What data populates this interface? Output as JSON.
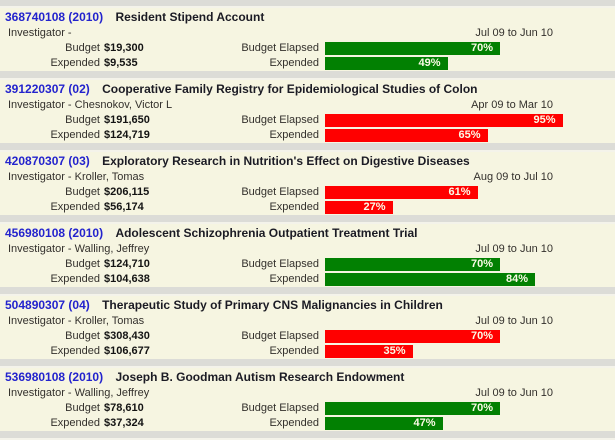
{
  "page": {
    "background_color": "#dcdcd7",
    "card_color": "#f6f5e1",
    "link_color": "#2323cd",
    "bar_green": "#028002",
    "bar_red": "#ff0000",
    "bar_text_color": "#fbfae6"
  },
  "labels": {
    "investigator_prefix": "Investigator -",
    "budget": "Budget",
    "budget_elapsed": "Budget Elapsed",
    "expended": "Expended"
  },
  "grants": [
    {
      "number": "368740108 (2010)",
      "title": "Resident Stipend Account",
      "investigator": "",
      "period": "Jul 09 to Jun 10",
      "budget": "$19,300",
      "expended": "$9,535",
      "budget_elapsed": {
        "pct": 70,
        "label": "70%",
        "color": "#028002"
      },
      "expended_bar": {
        "pct": 49,
        "label": "49%",
        "color": "#028002"
      }
    },
    {
      "number": "391220307 (02)",
      "title": "Cooperative Family Registry for Epidemiological Studies of Colon",
      "investigator": "Chesnokov, Victor L",
      "period": "Apr 09 to Mar 10",
      "budget": "$191,650",
      "expended": "$124,719",
      "budget_elapsed": {
        "pct": 95,
        "label": "95%",
        "color": "#ff0000"
      },
      "expended_bar": {
        "pct": 65,
        "label": "65%",
        "color": "#ff0000"
      }
    },
    {
      "number": "420870307 (03)",
      "title": "Exploratory Research in Nutrition's Effect on Digestive Diseases",
      "investigator": "Kroller, Tomas",
      "period": "Aug 09 to Jul 10",
      "budget": "$206,115",
      "expended": "$56,174",
      "budget_elapsed": {
        "pct": 61,
        "label": "61%",
        "color": "#ff0000"
      },
      "expended_bar": {
        "pct": 27,
        "label": "27%",
        "color": "#ff0000"
      }
    },
    {
      "number": "456980108 (2010)",
      "title": "Adolescent Schizophrenia Outpatient Treatment Trial",
      "investigator": "Walling, Jeffrey",
      "period": "Jul 09 to Jun 10",
      "budget": "$124,710",
      "expended": "$104,638",
      "budget_elapsed": {
        "pct": 70,
        "label": "70%",
        "color": "#028002"
      },
      "expended_bar": {
        "pct": 84,
        "label": "84%",
        "color": "#028002"
      }
    },
    {
      "number": "504890307 (04)",
      "title": "Therapeutic Study of Primary CNS Malignancies in Children",
      "investigator": "Kroller, Tomas",
      "period": "Jul 09 to Jun 10",
      "budget": "$308,430",
      "expended": "$106,677",
      "budget_elapsed": {
        "pct": 70,
        "label": "70%",
        "color": "#ff0000"
      },
      "expended_bar": {
        "pct": 35,
        "label": "35%",
        "color": "#ff0000"
      }
    },
    {
      "number": "536980108 (2010)",
      "title": "Joseph B. Goodman Autism Research Endowment",
      "investigator": "Walling, Jeffrey",
      "period": "Jul 09 to Jun 10",
      "budget": "$78,610",
      "expended": "$37,324",
      "budget_elapsed": {
        "pct": 70,
        "label": "70%",
        "color": "#028002"
      },
      "expended_bar": {
        "pct": 47,
        "label": "47%",
        "color": "#028002"
      }
    }
  ]
}
